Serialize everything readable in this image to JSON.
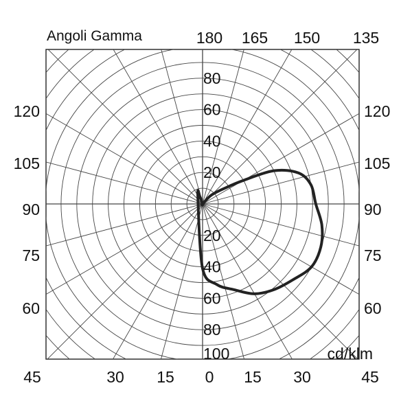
{
  "chart_data": {
    "type": "polar",
    "title": "Angoli Gamma",
    "unit": "cd/klm",
    "radial_max": 100,
    "radial_ticks": [
      20,
      40,
      60,
      80,
      100
    ],
    "upper_radial_labels": [
      "20",
      "40",
      "60",
      "80"
    ],
    "lower_radial_labels": [
      "20",
      "40",
      "60",
      "80",
      "100"
    ],
    "angle_step_deg": 15,
    "top_labels": [
      "180",
      "165",
      "150",
      "135"
    ],
    "left_labels": [
      "120",
      "105",
      "90",
      "75",
      "60"
    ],
    "right_labels": [
      "120",
      "105",
      "90",
      "75",
      "60"
    ],
    "bottom_labels": [
      "45",
      "30",
      "15",
      "0",
      "15",
      "30",
      "45"
    ],
    "grid": true,
    "series": [
      {
        "color": "#222222",
        "points": [
          {
            "gamma": 0,
            "value": 41
          },
          {
            "gamma": 10,
            "value": 52
          },
          {
            "gamma": 20,
            "value": 58
          },
          {
            "gamma": 30,
            "value": 66
          },
          {
            "gamma": 40,
            "value": 71
          },
          {
            "gamma": 50,
            "value": 75
          },
          {
            "gamma": 60,
            "value": 80
          },
          {
            "gamma": 70,
            "value": 80
          },
          {
            "gamma": 80,
            "value": 77
          },
          {
            "gamma": 90,
            "value": 72
          },
          {
            "gamma": 100,
            "value": 70
          },
          {
            "gamma": 108,
            "value": 64
          },
          {
            "gamma": 115,
            "value": 50
          },
          {
            "gamma": 120,
            "value": 30
          },
          {
            "gamma": 125,
            "value": 18
          },
          {
            "gamma": 135,
            "value": 8
          },
          {
            "gamma": 145,
            "value": 0
          },
          {
            "gamma": 190,
            "value": 0
          },
          {
            "gamma": 200,
            "value": 5
          },
          {
            "gamma": 210,
            "value": 6
          }
        ]
      }
    ]
  }
}
